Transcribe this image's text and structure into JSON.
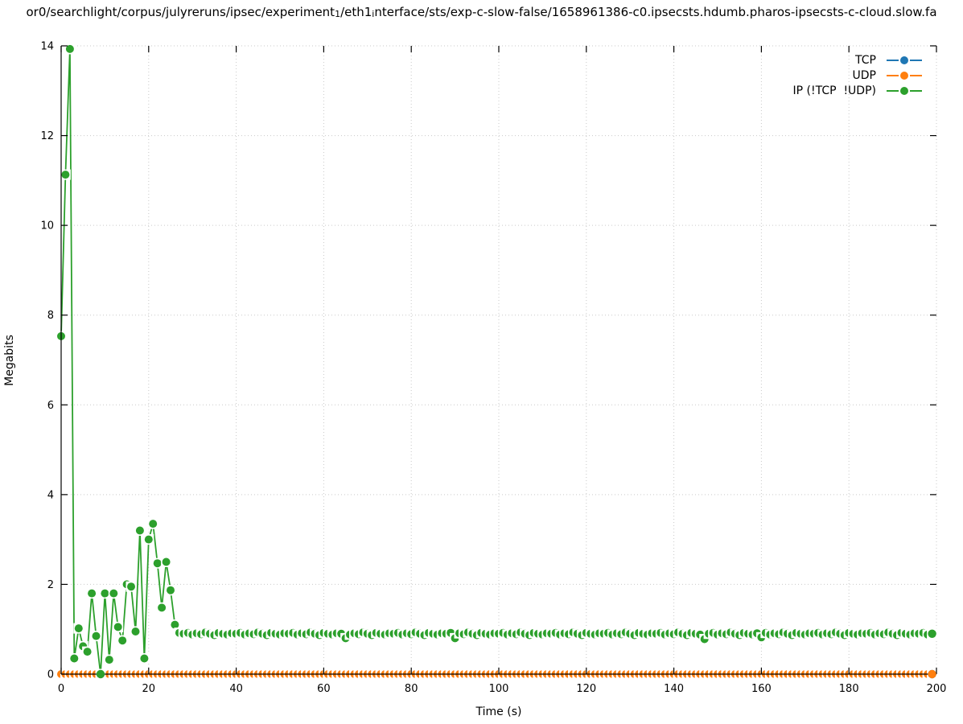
{
  "title": {
    "parts": [
      {
        "text": "or0/searchlight/corpus/julyreruns/ipsec/experiment",
        "sub": false
      },
      {
        "text": "1",
        "sub": true
      },
      {
        "text": "/eth1",
        "sub": false
      },
      {
        "text": "i",
        "sub": true
      },
      {
        "text": "nterface/sts/exp-c-slow-false/1658961386-c0.ipsecsts.hdumb.pharos-ipsecsts-c-cloud.slow.fa",
        "sub": false
      }
    ]
  },
  "axes": {
    "xlabel": "Time (s)",
    "ylabel": "Megabits"
  },
  "chart_data": {
    "type": "line",
    "title": "or0/searchlight/corpus/julyreruns/ipsec/experiment_1/eth1_interface/sts/exp-c-slow-false/1658961386-c0.ipsecsts.hdumb.pharos-ipsecsts-c-cloud.slow.fa",
    "xlabel": "Time (s)",
    "ylabel": "Megabits",
    "xlim": [
      0,
      200
    ],
    "ylim": [
      0,
      14
    ],
    "xticks": [
      0,
      20,
      40,
      60,
      80,
      100,
      120,
      140,
      160,
      180,
      200
    ],
    "yticks": [
      0,
      2,
      4,
      6,
      8,
      10,
      12,
      14
    ],
    "grid": "dotted",
    "legend_position": "top-right-inside",
    "marker": "filled-circle-with-erase-box (gnuplot linespoints pi<0)",
    "series": [
      {
        "name": "TCP",
        "color": "#1f77b4",
        "x_start": 0,
        "x_end": 199,
        "x_step": 1,
        "y_const": 0
      },
      {
        "name": "UDP",
        "color": "#ff7f0e",
        "x_start": 0,
        "x_end": 199,
        "x_step": 1,
        "y_const": 0
      },
      {
        "name": "IP (!TCP  !UDP)",
        "color": "#2ca02c",
        "x_start": 0,
        "x_step": 1,
        "y": [
          7.53,
          11.13,
          13.93,
          0.35,
          1.02,
          0.62,
          0.5,
          1.8,
          0.85,
          0.0,
          1.8,
          0.32,
          1.8,
          1.05,
          0.75,
          2.0,
          1.95,
          0.95,
          3.2,
          0.35,
          3.0,
          3.35,
          2.47,
          1.48,
          2.5,
          1.87,
          1.1,
          0.92,
          0.9,
          0.92,
          0.88,
          0.91,
          0.89,
          0.93,
          0.9,
          0.87,
          0.92,
          0.9,
          0.88,
          0.91,
          0.9,
          0.92,
          0.88,
          0.91,
          0.89,
          0.93,
          0.9,
          0.87,
          0.92,
          0.9,
          0.88,
          0.91,
          0.9,
          0.92,
          0.88,
          0.91,
          0.89,
          0.93,
          0.9,
          0.87,
          0.92,
          0.9,
          0.88,
          0.91,
          0.9,
          0.8,
          0.88,
          0.91,
          0.89,
          0.93,
          0.9,
          0.87,
          0.92,
          0.9,
          0.88,
          0.91,
          0.9,
          0.92,
          0.88,
          0.91,
          0.89,
          0.93,
          0.9,
          0.87,
          0.92,
          0.9,
          0.88,
          0.91,
          0.9,
          0.92,
          0.8,
          0.91,
          0.89,
          0.93,
          0.9,
          0.87,
          0.92,
          0.9,
          0.88,
          0.91,
          0.9,
          0.92,
          0.88,
          0.91,
          0.89,
          0.93,
          0.9,
          0.87,
          0.92,
          0.9,
          0.88,
          0.91,
          0.9,
          0.92,
          0.88,
          0.91,
          0.89,
          0.93,
          0.9,
          0.87,
          0.92,
          0.9,
          0.88,
          0.91,
          0.9,
          0.92,
          0.88,
          0.91,
          0.89,
          0.93,
          0.9,
          0.87,
          0.92,
          0.9,
          0.88,
          0.91,
          0.9,
          0.92,
          0.88,
          0.91,
          0.89,
          0.93,
          0.9,
          0.87,
          0.92,
          0.9,
          0.88,
          0.78,
          0.9,
          0.92,
          0.88,
          0.91,
          0.89,
          0.93,
          0.9,
          0.87,
          0.92,
          0.9,
          0.88,
          0.91,
          0.82,
          0.92,
          0.88,
          0.91,
          0.89,
          0.93,
          0.9,
          0.87,
          0.92,
          0.9,
          0.88,
          0.91,
          0.9,
          0.92,
          0.88,
          0.91,
          0.89,
          0.93,
          0.9,
          0.87,
          0.92,
          0.9,
          0.88,
          0.91,
          0.9,
          0.92,
          0.88,
          0.91,
          0.89,
          0.93,
          0.9,
          0.87,
          0.92,
          0.9,
          0.88,
          0.91,
          0.9,
          0.92,
          0.88,
          0.9
        ]
      }
    ]
  }
}
